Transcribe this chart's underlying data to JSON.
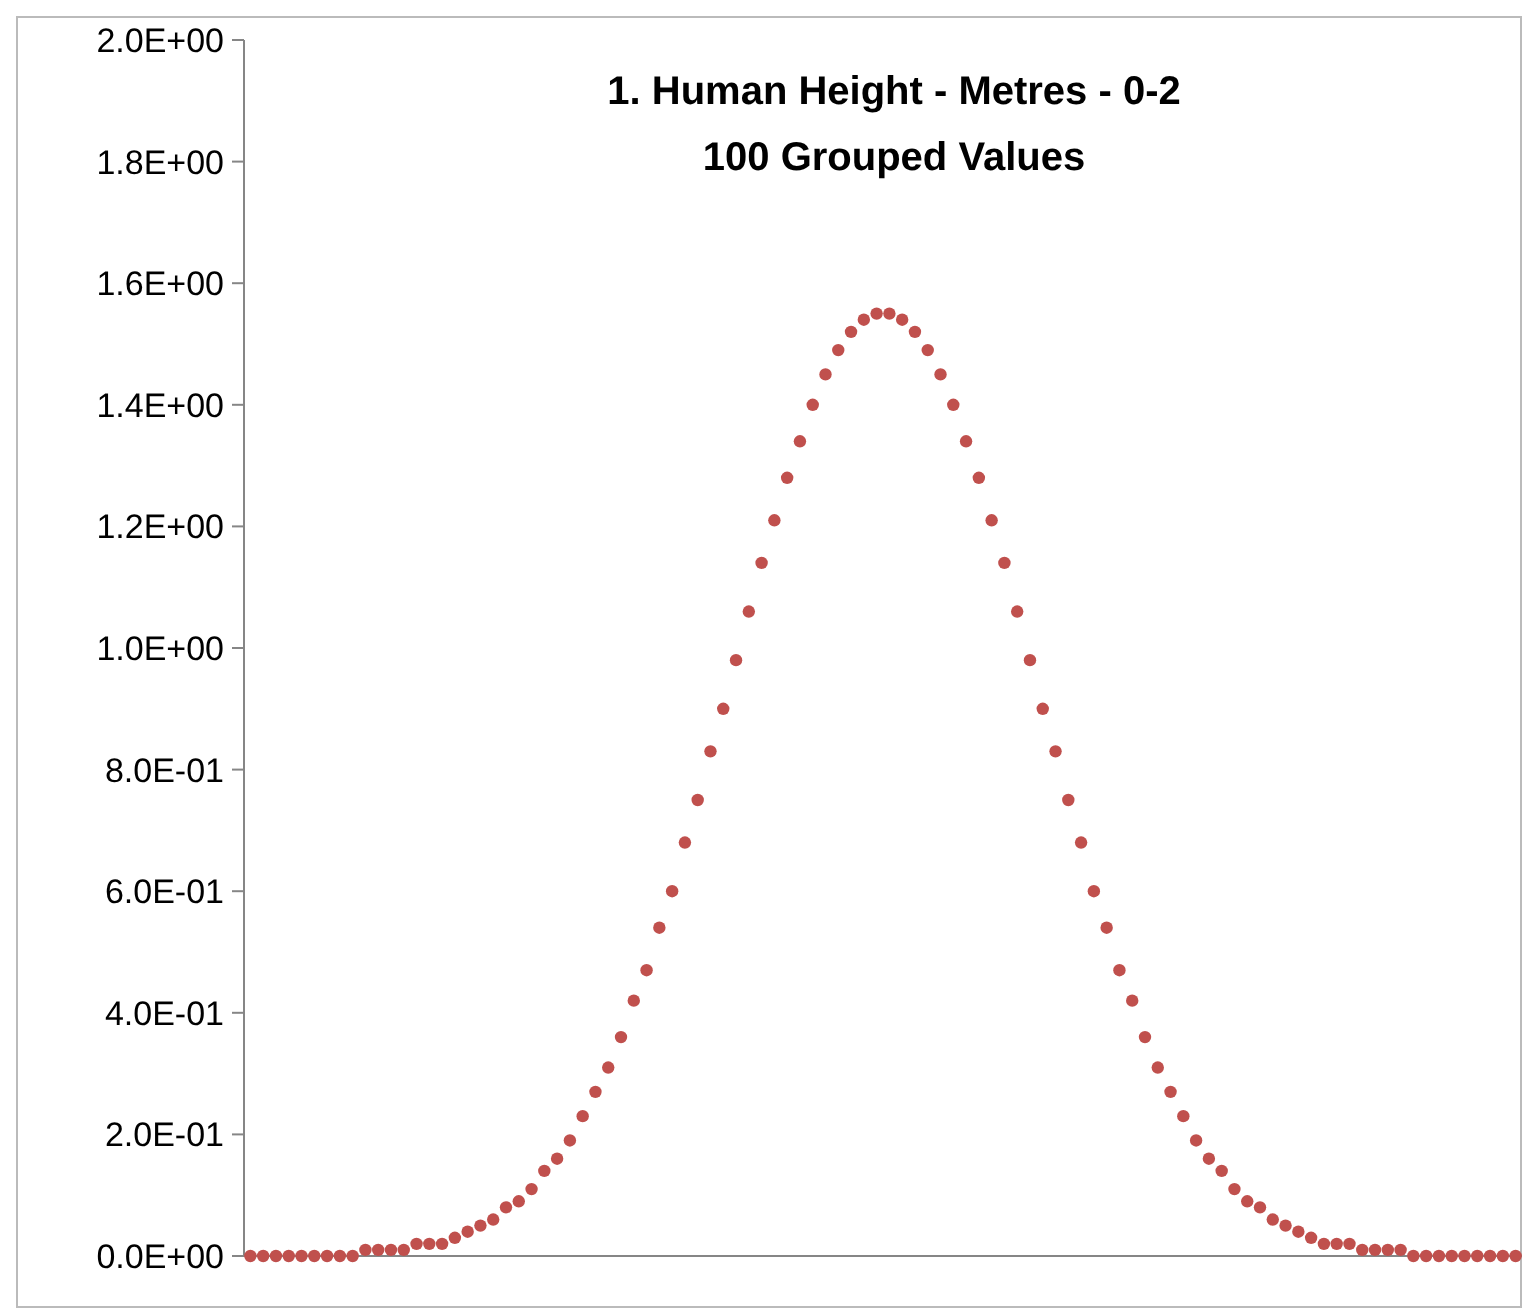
{
  "chart_data": {
    "type": "scatter",
    "title": "1. Human Height - Metres - 0-2\n100 Grouped Values",
    "categories": [
      null,
      null,
      null,
      null,
      null,
      null,
      null,
      null,
      null,
      null,
      null,
      null,
      null,
      null,
      null,
      null,
      null,
      null,
      null,
      null,
      null,
      null,
      null,
      null,
      null,
      null,
      null,
      null,
      null,
      null,
      null,
      null,
      null,
      null,
      null,
      null,
      null,
      null,
      null,
      null,
      null,
      null,
      null,
      null,
      null,
      null,
      null,
      null,
      null,
      null,
      null,
      null,
      null,
      null,
      null,
      null,
      null,
      null,
      null,
      null,
      null,
      null,
      null,
      null,
      null,
      null,
      null,
      null,
      null,
      null,
      null,
      null,
      null,
      null,
      null,
      null,
      null,
      null,
      null,
      null,
      null,
      null,
      null,
      null,
      null,
      null,
      null,
      null,
      null,
      null,
      null,
      null,
      null,
      null,
      null,
      null,
      null,
      null,
      null,
      null
    ],
    "series": [
      {
        "color": "#c0504d",
        "values": [
          0,
          0,
          0,
          0,
          0,
          0,
          0,
          0,
          0,
          0.01,
          0.01,
          0.01,
          0.01,
          0.02,
          0.02,
          0.02,
          0.03,
          0.04,
          0.05,
          0.06,
          0.08,
          0.09,
          0.11,
          0.14,
          0.16,
          0.19,
          0.23,
          0.27,
          0.31,
          0.36,
          0.42,
          0.47,
          0.54,
          0.6,
          0.68,
          0.75,
          0.83,
          0.9,
          0.98,
          1.06,
          1.14,
          1.21,
          1.28,
          1.34,
          1.4,
          1.45,
          1.49,
          1.52,
          1.54,
          1.55,
          1.55,
          1.54,
          1.52,
          1.49,
          1.45,
          1.4,
          1.34,
          1.28,
          1.21,
          1.14,
          1.06,
          0.98,
          0.9,
          0.83,
          0.75,
          0.68,
          0.6,
          0.54,
          0.47,
          0.42,
          0.36,
          0.31,
          0.27,
          0.23,
          0.19,
          0.16,
          0.14,
          0.11,
          0.09,
          0.08,
          0.06,
          0.05,
          0.04,
          0.03,
          0.02,
          0.02,
          0.02,
          0.01,
          0.01,
          0.01,
          0.01,
          0,
          0,
          0,
          0,
          0,
          0,
          0,
          0,
          0
        ]
      }
    ],
    "ylim": [
      0,
      2
    ],
    "yticks": [
      {
        "value": 0,
        "label": "0.0E+00"
      },
      {
        "value": 0.2,
        "label": "2.0E-01"
      },
      {
        "value": 0.4,
        "label": "4.0E-01"
      },
      {
        "value": 0.6,
        "label": "6.0E-01"
      },
      {
        "value": 0.8,
        "label": "8.0E-01"
      },
      {
        "value": 1,
        "label": "1.0E+00"
      },
      {
        "value": 1.2,
        "label": "1.2E+00"
      },
      {
        "value": 1.4,
        "label": "1.4E+00"
      },
      {
        "value": 1.6,
        "label": "1.6E+00"
      },
      {
        "value": 1.8,
        "label": "1.8E+00"
      },
      {
        "value": 2,
        "label": "2.0E+00"
      }
    ],
    "marker": "circle",
    "grid": false
  }
}
